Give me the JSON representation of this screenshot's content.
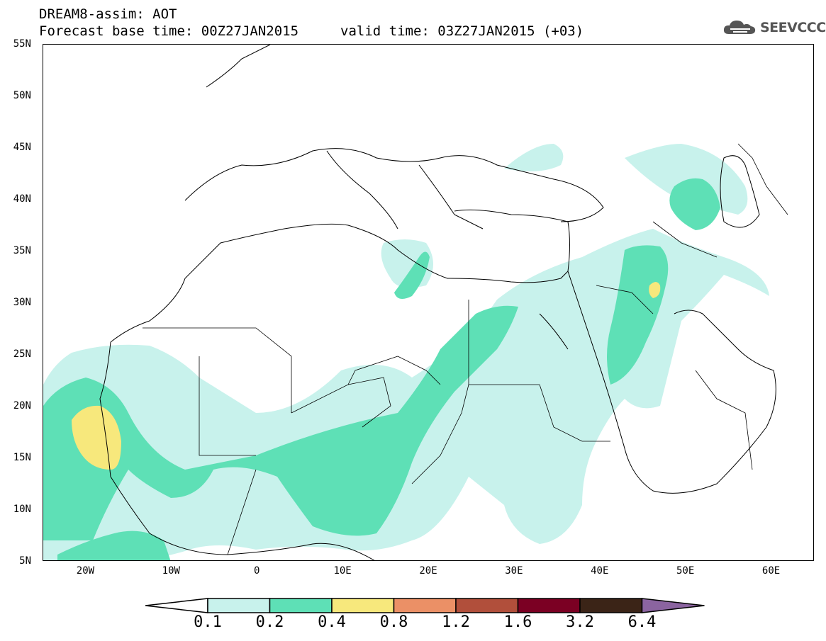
{
  "header": {
    "title": "DREAM8-assim: AOT",
    "base_time": "Forecast base time: 00Z27JAN2015",
    "valid_time": "valid time: 03Z27JAN2015 (+03)",
    "logo_text": "SEEVCCC"
  },
  "map": {
    "lon_range": [
      -25,
      65
    ],
    "lat_range": [
      5,
      55
    ],
    "lat_ticks": [
      {
        "value": 55,
        "label": "55N"
      },
      {
        "value": 50,
        "label": "50N"
      },
      {
        "value": 45,
        "label": "45N"
      },
      {
        "value": 40,
        "label": "40N"
      },
      {
        "value": 35,
        "label": "35N"
      },
      {
        "value": 30,
        "label": "30N"
      },
      {
        "value": 25,
        "label": "25N"
      },
      {
        "value": 20,
        "label": "20N"
      },
      {
        "value": 15,
        "label": "15N"
      },
      {
        "value": 10,
        "label": "10N"
      },
      {
        "value": 5,
        "label": "5N"
      }
    ],
    "lon_ticks": [
      {
        "value": -20,
        "label": "20W"
      },
      {
        "value": -10,
        "label": "10W"
      },
      {
        "value": 0,
        "label": "0"
      },
      {
        "value": 10,
        "label": "10E"
      },
      {
        "value": 20,
        "label": "20E"
      },
      {
        "value": 30,
        "label": "30E"
      },
      {
        "value": 40,
        "label": "40E"
      },
      {
        "value": 50,
        "label": "50E"
      },
      {
        "value": 60,
        "label": "60E"
      }
    ]
  },
  "colorbar": {
    "levels": [
      "0.1",
      "0.2",
      "0.4",
      "0.8",
      "1.2",
      "1.6",
      "3.2",
      "6.4"
    ],
    "colors": [
      "#ffffff",
      "#c8f2ec",
      "#5ee0b6",
      "#f7e87c",
      "#eb9066",
      "#b14f3b",
      "#7b0023",
      "#3b2417",
      "#8b64a0"
    ]
  }
}
